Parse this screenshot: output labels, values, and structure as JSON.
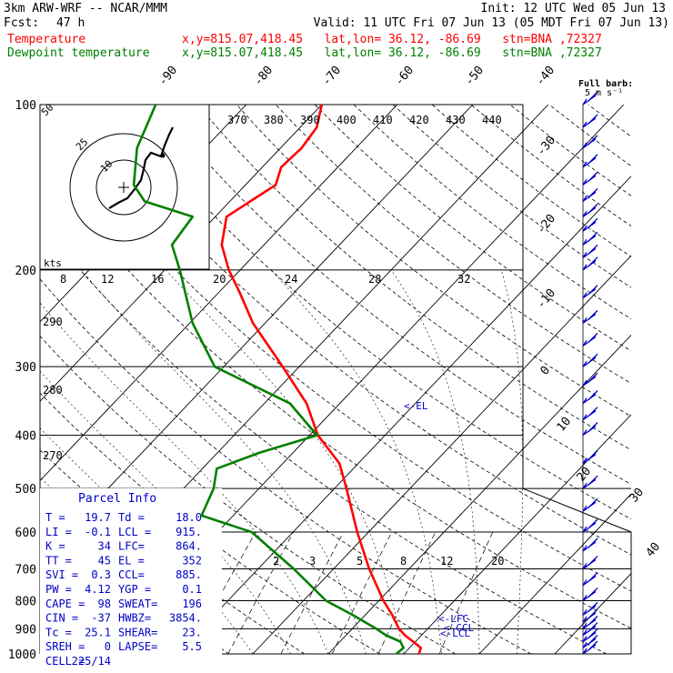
{
  "header": {
    "model": "3km ARW-WRF -- NCAR/MMM",
    "init": "Init: 12 UTC Wed 05 Jun 13",
    "fcst_label": "Fcst:",
    "fcst_value": "47 h",
    "valid": "Valid: 11 UTC Fri 07 Jun 13 (05 MDT Fri 07 Jun 13)",
    "temp_label": "Temperature",
    "dew_label": "Dewpoint temperature",
    "temp_loc": "x,y=815.07,418.45   lat,lon= 36.12, -86.69   stn=BNA ,72327",
    "dew_loc": "x,y=815.07,418.45   lat,lon= 36.12, -86.69   stn=BNA ,72327"
  },
  "colors": {
    "temperature": "#ff0000",
    "dewpoint": "#008000",
    "annotation": "#0000c8",
    "wind": "#0000c8"
  },
  "barb_legend": {
    "line1": "Full barb:",
    "line2": "5 m s⁻¹"
  },
  "hodo": {
    "units": "kts",
    "ticks": [
      "8",
      "12",
      "16",
      "20",
      "24",
      "28",
      "32"
    ],
    "ring_labels": [
      "50",
      "25",
      "10"
    ]
  },
  "parcel": {
    "title": "Parcel Info",
    "rows": [
      [
        "T  =",
        "19.7",
        "Td =",
        "18.0"
      ],
      [
        "LI =",
        "-0.1",
        "LCL =",
        "915."
      ],
      [
        "K  =",
        "34",
        "LFC=",
        "864."
      ],
      [
        "TT =",
        "45",
        "EL =",
        "352"
      ],
      [
        "SVI =",
        "0.3",
        "CCL=",
        "885."
      ],
      [
        "PW =",
        "4.12",
        "YGP =",
        "0.1"
      ],
      [
        "CAPE =",
        "98",
        "SWEAT=",
        "196"
      ],
      [
        "CIN =",
        "-37",
        "HWBZ=",
        "3854."
      ],
      [
        "Tc =",
        "25.1",
        "SHEAR=",
        "23."
      ],
      [
        "SREH =",
        "0",
        "LAPSE=",
        "5.5"
      ],
      [
        "CELL =",
        "225/14",
        "",
        ""
      ]
    ]
  },
  "annotations": {
    "el": "<-EL",
    "lfc": "<-LFC",
    "lcl": "<-LCL",
    "ccl": "<-CCL"
  },
  "chart_data": {
    "type": "skew-t",
    "pressure_axis": {
      "levels": [
        100,
        200,
        300,
        400,
        500,
        600,
        700,
        800,
        900,
        1000
      ],
      "scale": "log",
      "units": "hPa"
    },
    "isotherm_labels": [
      -90,
      -80,
      -70,
      -60,
      -50,
      -40,
      -30,
      -20,
      -10,
      0,
      10,
      20,
      30,
      40
    ],
    "theta_labels": [
      370,
      380,
      390,
      400,
      410,
      420,
      430,
      440
    ],
    "theta_e_labels": [
      290,
      280,
      270
    ],
    "mixing_ratio_labels": [
      2,
      3,
      5,
      8,
      12,
      20
    ],
    "series": [
      {
        "name": "Temperature",
        "pressure": [
          1000,
          975,
          950,
          925,
          900,
          850,
          800,
          700,
          600,
          500,
          450,
          400,
          350,
          300,
          250,
          220,
          200,
          180,
          160,
          150,
          140,
          130,
          120,
          110,
          100
        ],
        "values": [
          22,
          21.5,
          19.7,
          17.8,
          16.2,
          13.6,
          10.6,
          4.7,
          -1.5,
          -8.4,
          -12.5,
          -18.9,
          -24.4,
          -32.2,
          -41.6,
          -47.2,
          -51.5,
          -55.6,
          -58.5,
          -57.3,
          -56.0,
          -57.5,
          -57.2,
          -57.8,
          -60.0
        ]
      },
      {
        "name": "Dewpoint temperature",
        "pressure": [
          1000,
          975,
          950,
          925,
          900,
          850,
          800,
          700,
          600,
          560,
          500,
          460,
          430,
          400,
          350,
          300,
          250,
          200,
          180,
          160,
          150,
          140,
          120,
          100
        ],
        "values": [
          19,
          19.2,
          18.0,
          15.3,
          13.2,
          8.4,
          3.0,
          -5.3,
          -15.5,
          -24.2,
          -26.0,
          -28.1,
          -24.4,
          -19.0,
          -26.6,
          -41.2,
          -49.6,
          -58.0,
          -62.2,
          -63.0,
          -71.3,
          -74.8,
          -79.0,
          -82.0
        ]
      }
    ],
    "wind_levels_hpa": [
      1000,
      975,
      950,
      925,
      900,
      875,
      850,
      800,
      750,
      700,
      650,
      600,
      550,
      500,
      450,
      400,
      375,
      350,
      325,
      300,
      275,
      250,
      225,
      200,
      190,
      180,
      170,
      160,
      150,
      140,
      130,
      120,
      110,
      100
    ]
  }
}
